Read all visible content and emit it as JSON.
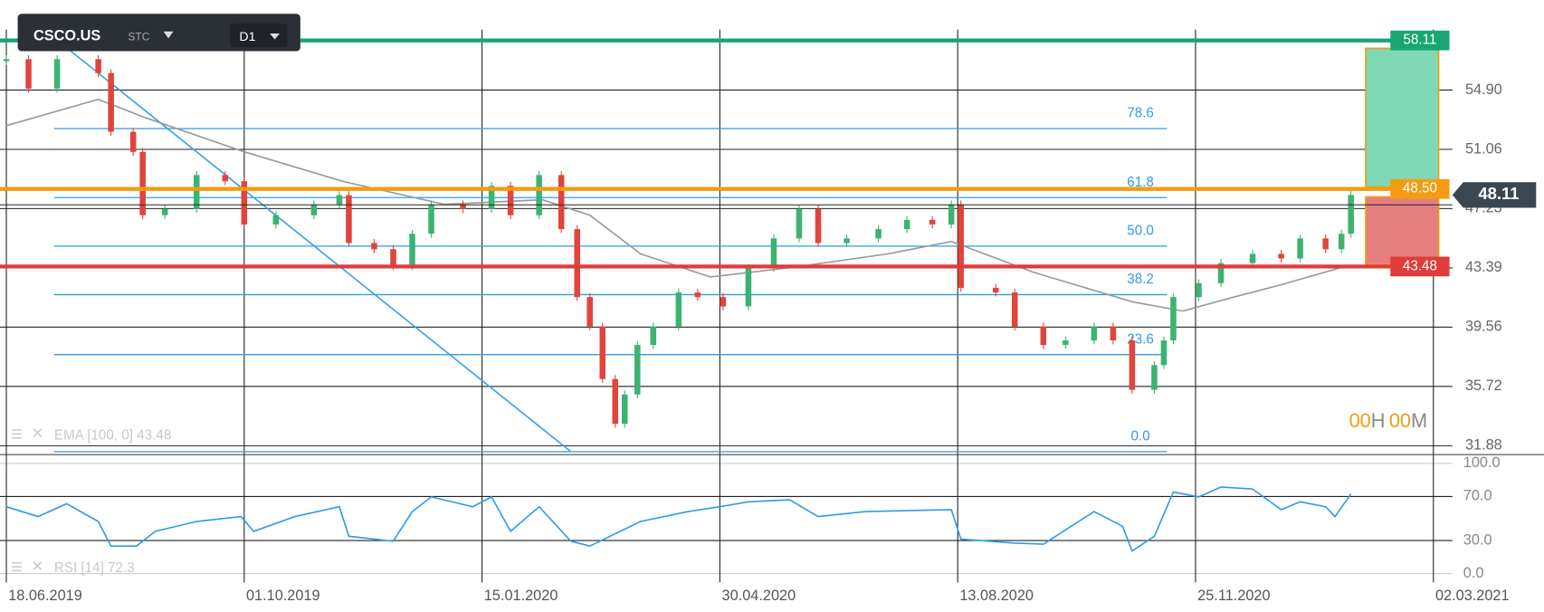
{
  "toolbar": {
    "symbol": "CSCO.US",
    "kind": "STC",
    "timeframe": "D1"
  },
  "countdown": [
    "00",
    "H",
    "00",
    "M"
  ],
  "chart_data": [
    {
      "type": "candlestick",
      "x": [
        0,
        7,
        16,
        29,
        33,
        40,
        43,
        50,
        60,
        69,
        75,
        85,
        97,
        105,
        108,
        116,
        122,
        128,
        134,
        144,
        153,
        159,
        168,
        175,
        180,
        184,
        188,
        192,
        195,
        199,
        204,
        212,
        218,
        226,
        234,
        242,
        250,
        256,
        265,
        275,
        284,
        292,
        298,
        301,
        312,
        318,
        327,
        334,
        343,
        349,
        355,
        362,
        365,
        368,
        376,
        383,
        393,
        402,
        408,
        416,
        421,
        424
      ],
      "close": [
        56.9,
        55.0,
        56.9,
        56.0,
        52.2,
        50.9,
        46.8,
        47.2,
        49.4,
        49.0,
        46.2,
        46.8,
        47.5,
        48.1,
        45.0,
        44.6,
        43.5,
        45.6,
        47.5,
        47.2,
        48.7,
        46.8,
        49.4,
        45.9,
        41.5,
        39.6,
        36.2,
        33.3,
        35.2,
        38.4,
        39.6,
        41.8,
        41.5,
        40.9,
        43.4,
        45.3,
        47.2,
        45.0,
        45.3,
        45.9,
        46.5,
        46.2,
        47.5,
        42.1,
        41.8,
        39.6,
        38.4,
        38.7,
        39.6,
        38.7,
        35.5,
        37.1,
        38.7,
        41.5,
        42.4,
        43.7,
        44.3,
        44.0,
        45.3,
        44.6,
        45.6,
        48.11
      ],
      "up_color": "#3cb371",
      "down_color": "#e0443c",
      "last_price": 48.11,
      "ema": {
        "label": "EMA [100, 0] 43.48",
        "color": "#9a9a9a",
        "x": [
          0,
          29,
          44,
          75,
          106,
          138,
          169,
          184,
          200,
          222,
          247,
          278,
          298,
          324,
          355,
          371,
          387,
          402,
          422
        ],
        "values": [
          52.6,
          54.3,
          53.1,
          50.9,
          49.0,
          47.5,
          47.8,
          46.8,
          44.3,
          42.8,
          43.4,
          44.3,
          45.1,
          43.1,
          41.2,
          40.6,
          41.5,
          42.3,
          43.48
        ]
      },
      "levels": {
        "values": [
          58.11,
          48.5,
          43.48
        ],
        "value_labels": [
          "58.11",
          "48.50",
          "43.48"
        ],
        "colors": [
          "#17a673",
          "#f39c12",
          "#e03c3c"
        ]
      },
      "fib": {
        "x": [
          15,
          366
        ],
        "levels": [
          "0.0",
          "23.6",
          "38.2",
          "50.0",
          "61.8",
          "78.6"
        ],
        "prices": [
          31.5,
          37.78,
          41.66,
          44.8,
          47.94,
          52.41
        ],
        "color": "#2f9be8"
      },
      "trendline": {
        "x": [
          15,
          178
        ],
        "y": [
          58.3,
          31.5
        ],
        "color": "#3aa0e8"
      },
      "xlim": [
        -2,
        456
      ],
      "ylim": [
        31.5,
        58.5
      ],
      "yticks": [
        31.88,
        35.72,
        39.56,
        43.39,
        47.23,
        51.06,
        {
          "value": 54.9,
          "label": "54.90"
        }
      ]
    },
    {
      "type": "line",
      "label": "RSI [14] 72.3",
      "color": "#2f9be8",
      "x": [
        0,
        10,
        19,
        29,
        33,
        41,
        47,
        60,
        74,
        78,
        91,
        105,
        108,
        122,
        128,
        134,
        147,
        153,
        159,
        168,
        178,
        184,
        200,
        215,
        225,
        234,
        247,
        256,
        271,
        298,
        301,
        318,
        327,
        343,
        352,
        355,
        362,
        368,
        376,
        383,
        393,
        402,
        408,
        416,
        419,
        424
      ],
      "values": [
        60.7,
        51.8,
        63.4,
        47.3,
        25,
        25,
        38.4,
        47.3,
        51.8,
        38.4,
        51.8,
        60.7,
        33.9,
        29.5,
        56.3,
        69.6,
        60.7,
        69.6,
        38.4,
        60.7,
        29.5,
        25,
        47.3,
        56.3,
        60.7,
        65.2,
        67,
        51.8,
        56.3,
        58,
        31.3,
        27.7,
        26.8,
        56.3,
        42.9,
        20.5,
        33.9,
        74.1,
        69.6,
        78.6,
        76.8,
        58,
        65.2,
        60.7,
        51.8,
        72.3
      ],
      "xlim": [
        -2,
        456
      ],
      "ylim": [
        0,
        100
      ],
      "yticks": [
        {
          "value": 0,
          "label": "0.0"
        },
        {
          "value": 30,
          "label": "30.0"
        },
        {
          "value": 70,
          "label": "70.0"
        },
        {
          "value": 100,
          "label": "100.0"
        }
      ],
      "xticks": [
        {
          "value": 0,
          "label": "18.06.2019"
        },
        {
          "value": 75,
          "label": "01.10.2019"
        },
        {
          "value": 150,
          "label": "15.01.2020"
        },
        {
          "value": 225,
          "label": "30.04.2020"
        },
        {
          "value": 300,
          "label": "13.08.2020"
        },
        {
          "value": 375,
          "label": "25.11.2020"
        },
        {
          "value": 450,
          "label": "02.03.2021"
        }
      ]
    }
  ]
}
